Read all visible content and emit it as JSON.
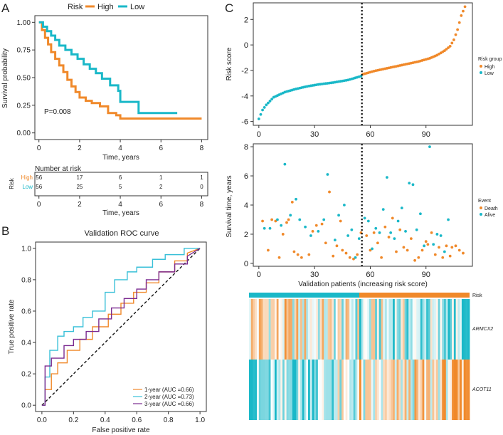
{
  "colors": {
    "high": "#f0892a",
    "low": "#1ab8c8",
    "two_year": "#39c0d8",
    "three_year": "#7b2a90",
    "text": "#222222"
  },
  "panelA": {
    "letter": "A",
    "legend": {
      "title": "Risk",
      "items": [
        "High",
        "Low"
      ]
    },
    "ylabel": "Survival probability",
    "xlabel": "Time, years",
    "pvalue": "P=0.008",
    "yticks": [
      "1.00",
      "0.75",
      "0.50",
      "0.25",
      "0.00"
    ],
    "xticks": [
      "0",
      "2",
      "4",
      "6",
      "8"
    ]
  },
  "risktable": {
    "title": "Number at risk",
    "side_label": "Risk",
    "xlabel": "Time, years",
    "xticks": [
      "0",
      "2",
      "4",
      "6",
      "8"
    ],
    "rows": [
      {
        "label": "High",
        "counts": [
          "56",
          "17",
          "6",
          "1",
          "1"
        ]
      },
      {
        "label": "Low",
        "counts": [
          "56",
          "25",
          "5",
          "2",
          "0"
        ]
      }
    ]
  },
  "panelB": {
    "letter": "B",
    "title": "Validation ROC curve",
    "xlabel": "False positive rate",
    "ylabel": "True positive rate",
    "ticks": [
      "0.0",
      "0.2",
      "0.4",
      "0.6",
      "0.8",
      "1.0"
    ],
    "legend": [
      "1-year (AUC =0.66)",
      "2-year (AUC =0.73)",
      "3-year (AUC =0.66)"
    ]
  },
  "panelC": {
    "letter": "C",
    "risk_ylabel": "Risk score",
    "risk_yticks": [
      "2",
      "0",
      "-2",
      "-4",
      "-6"
    ],
    "risk_xticks": [
      "0",
      "30",
      "60",
      "90"
    ],
    "risk_legend": {
      "title": "Risk group",
      "items": [
        "High",
        "Low"
      ]
    },
    "surv_ylabel": "Survival time, years",
    "surv_yticks": [
      "8",
      "6",
      "4",
      "2",
      "0"
    ],
    "surv_xticks": [
      "0",
      "30",
      "60",
      "90"
    ],
    "surv_xlabel": "Validation patients (increasing risk score)",
    "event_legend": {
      "title": "Event",
      "items": [
        "Death",
        "Alive"
      ]
    },
    "heat_label_risk": "Risk",
    "genes": [
      "ARMCX2",
      "ACOT11"
    ]
  },
  "chart_data": [
    {
      "id": "km",
      "type": "line",
      "title": "",
      "xlabel": "Time, years",
      "ylabel": "Survival probability",
      "xlim": [
        0,
        8
      ],
      "ylim": [
        0,
        1
      ],
      "series": [
        {
          "name": "High",
          "step": true,
          "x": [
            0,
            0.15,
            0.3,
            0.45,
            0.6,
            0.8,
            1.0,
            1.2,
            1.4,
            1.6,
            1.8,
            2.0,
            2.3,
            2.6,
            3.0,
            3.4,
            3.8,
            4.0,
            5.0,
            6.0,
            8.0
          ],
          "y": [
            1.0,
            0.93,
            0.86,
            0.8,
            0.73,
            0.67,
            0.61,
            0.55,
            0.48,
            0.42,
            0.37,
            0.32,
            0.29,
            0.27,
            0.24,
            0.18,
            0.16,
            0.13,
            0.13,
            0.13,
            0.13
          ]
        },
        {
          "name": "Low",
          "step": true,
          "x": [
            0,
            0.2,
            0.4,
            0.6,
            0.8,
            1.0,
            1.3,
            1.6,
            1.9,
            2.2,
            2.5,
            2.8,
            3.1,
            3.5,
            3.9,
            4.0,
            4.9,
            6.8
          ],
          "y": [
            1.0,
            0.96,
            0.92,
            0.88,
            0.84,
            0.79,
            0.75,
            0.71,
            0.67,
            0.62,
            0.58,
            0.54,
            0.49,
            0.43,
            0.38,
            0.28,
            0.18,
            0.18
          ]
        }
      ]
    },
    {
      "id": "roc",
      "type": "line",
      "title": "Validation ROC curve",
      "xlabel": "False positive rate",
      "ylabel": "True positive rate",
      "xlim": [
        0,
        1
      ],
      "ylim": [
        0,
        1
      ],
      "series": [
        {
          "name": "1-year (AUC =0.66)",
          "x": [
            0,
            0.02,
            0.02,
            0.06,
            0.06,
            0.1,
            0.1,
            0.16,
            0.16,
            0.24,
            0.24,
            0.32,
            0.32,
            0.42,
            0.42,
            0.5,
            0.5,
            0.58,
            0.58,
            0.66,
            0.66,
            0.74,
            0.74,
            0.84,
            0.84,
            0.92,
            0.92,
            1.0
          ],
          "y": [
            0,
            0,
            0.1,
            0.1,
            0.2,
            0.2,
            0.27,
            0.27,
            0.35,
            0.35,
            0.42,
            0.42,
            0.5,
            0.5,
            0.58,
            0.58,
            0.65,
            0.65,
            0.72,
            0.72,
            0.78,
            0.78,
            0.85,
            0.85,
            0.92,
            0.92,
            0.97,
            1.0
          ]
        },
        {
          "name": "2-year (AUC =0.73)",
          "x": [
            0,
            0.02,
            0.02,
            0.05,
            0.05,
            0.1,
            0.1,
            0.14,
            0.14,
            0.2,
            0.2,
            0.26,
            0.26,
            0.32,
            0.32,
            0.4,
            0.4,
            0.46,
            0.46,
            0.54,
            0.54,
            0.6,
            0.6,
            0.7,
            0.7,
            0.78,
            0.78,
            0.9,
            0.9,
            1.0
          ],
          "y": [
            0,
            0,
            0.18,
            0.18,
            0.35,
            0.35,
            0.44,
            0.44,
            0.47,
            0.47,
            0.5,
            0.5,
            0.56,
            0.56,
            0.6,
            0.6,
            0.72,
            0.72,
            0.8,
            0.8,
            0.85,
            0.85,
            0.88,
            0.88,
            0.93,
            0.93,
            0.96,
            0.96,
            1.0,
            1.0
          ]
        },
        {
          "name": "3-year (AUC =0.66)",
          "x": [
            0,
            0.02,
            0.02,
            0.06,
            0.06,
            0.14,
            0.14,
            0.2,
            0.2,
            0.28,
            0.28,
            0.36,
            0.36,
            0.44,
            0.44,
            0.52,
            0.52,
            0.6,
            0.6,
            0.66,
            0.66,
            0.74,
            0.74,
            0.84,
            0.84,
            0.92,
            0.92,
            1.0
          ],
          "y": [
            0,
            0,
            0.25,
            0.25,
            0.3,
            0.3,
            0.38,
            0.38,
            0.42,
            0.42,
            0.47,
            0.47,
            0.55,
            0.55,
            0.62,
            0.62,
            0.68,
            0.68,
            0.74,
            0.74,
            0.8,
            0.8,
            0.85,
            0.85,
            0.9,
            0.9,
            0.95,
            1.0
          ]
        }
      ]
    },
    {
      "id": "riskscore",
      "type": "scatter",
      "title": "",
      "xlabel": "",
      "ylabel": "Risk score",
      "xlim": [
        -3,
        115
      ],
      "ylim": [
        -6.3,
        3.3
      ],
      "cutoff_index": 56,
      "n": 112,
      "keypoints": {
        "index": [
          0,
          2,
          4,
          8,
          14,
          20,
          26,
          32,
          40,
          48,
          55,
          56,
          62,
          70,
          78,
          86,
          92,
          96,
          100,
          103,
          105,
          107,
          109,
          111
        ],
        "value": [
          -5.8,
          -5.1,
          -4.7,
          -4.1,
          -3.7,
          -3.45,
          -3.25,
          -3.1,
          -2.95,
          -2.75,
          -2.45,
          -2.3,
          -2.05,
          -1.8,
          -1.55,
          -1.3,
          -1.05,
          -0.8,
          -0.45,
          -0.1,
          0.4,
          1.2,
          2.3,
          3.0
        ]
      },
      "series": [
        {
          "name": "High"
        },
        {
          "name": "Low"
        }
      ]
    },
    {
      "id": "survtime",
      "type": "scatter",
      "title": "",
      "xlabel": "Validation patients (increasing risk score)",
      "ylabel": "Survival time, years",
      "xlim": [
        -3,
        115
      ],
      "ylim": [
        -0.2,
        8.2
      ],
      "cutoff_index": 56,
      "series": [
        {
          "name": "Death",
          "x": [
            2,
            5,
            7,
            9,
            11,
            13,
            15,
            16,
            18,
            19,
            21,
            23,
            27,
            29,
            31,
            34,
            36,
            38,
            40,
            42,
            44,
            45,
            47,
            49,
            51,
            53,
            55,
            58,
            60,
            62,
            64,
            66,
            68,
            70,
            72,
            74,
            76,
            78,
            80,
            82,
            84,
            86,
            88,
            90,
            91,
            93,
            95,
            97,
            99,
            101,
            103,
            104,
            106,
            108,
            110
          ],
          "y": [
            2.9,
            0.9,
            3.0,
            2.9,
            0.4,
            2.0,
            2.8,
            3.0,
            4.2,
            0.8,
            0.6,
            0.4,
            0.6,
            2.2,
            2.6,
            2.7,
            1.4,
            4.9,
            0.5,
            1.2,
            2.9,
            0.9,
            0.7,
            0.4,
            0.3,
            0.6,
            2.1,
            1.9,
            0.9,
            2.1,
            1.4,
            0.4,
            2.5,
            1.8,
            3.1,
            0.8,
            2.3,
            1.1,
            0.9,
            1.7,
            0.2,
            0.4,
            0.9,
            1.5,
            1.3,
            2.1,
            0.6,
            1.1,
            0.4,
            1.2,
            0.5,
            1.1,
            1.2,
            0.9,
            0.7
          ]
        },
        {
          "name": "Alive",
          "x": [
            3,
            6,
            10,
            12,
            14,
            17,
            20,
            22,
            25,
            28,
            32,
            35,
            37,
            41,
            43,
            46,
            48,
            50,
            52,
            54,
            57,
            59,
            61,
            63,
            65,
            67,
            69,
            71,
            73,
            75,
            77,
            79,
            81,
            83,
            85,
            87,
            89,
            92,
            94,
            96,
            98,
            100,
            102
          ],
          "y": [
            2.4,
            2.4,
            3.0,
            2.6,
            6.8,
            3.3,
            4.4,
            3.0,
            2.5,
            1.9,
            2.2,
            3.0,
            6.1,
            1.6,
            3.3,
            4.0,
            1.9,
            2.3,
            0.4,
            1.7,
            3.1,
            2.9,
            1.0,
            2.4,
            2.1,
            3.7,
            5.9,
            2.1,
            1.7,
            2.9,
            3.8,
            2.2,
            5.5,
            5.4,
            2.3,
            3.4,
            1.2,
            8.0,
            1.3,
            2.0,
            1.9,
            0.8,
            3.0
          ]
        }
      ]
    },
    {
      "id": "heatmap",
      "type": "heatmap",
      "title": "",
      "rows": [
        "ARMCX2",
        "ACOT11"
      ],
      "columns": 112,
      "cutoff_index": 56,
      "low_group_count": 56,
      "high_group_count": 56,
      "scale": "row z-score (blue low, white mid, orange high)"
    }
  ]
}
